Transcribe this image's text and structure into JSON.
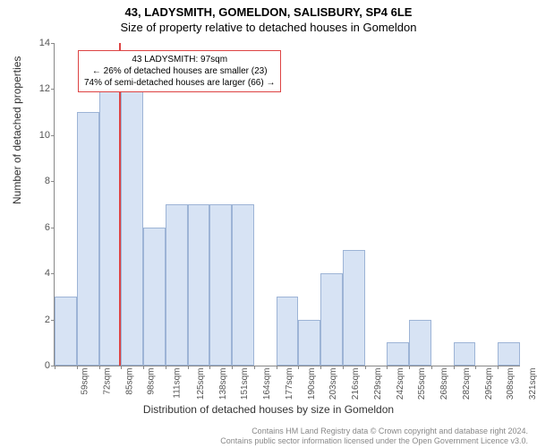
{
  "title": {
    "line1": "43, LADYSMITH, GOMELDON, SALISBURY, SP4 6LE",
    "line2": "Size of property relative to detached houses in Gomeldon"
  },
  "axes": {
    "ylabel": "Number of detached properties",
    "xlabel": "Distribution of detached houses by size in Gomeldon",
    "ymin": 0,
    "ymax": 14,
    "ytick_step": 2,
    "ytick_labels": [
      "0",
      "2",
      "4",
      "6",
      "8",
      "10",
      "12",
      "14"
    ],
    "xtick_labels": [
      "59sqm",
      "72sqm",
      "85sqm",
      "98sqm",
      "111sqm",
      "125sqm",
      "138sqm",
      "151sqm",
      "164sqm",
      "177sqm",
      "190sqm",
      "203sqm",
      "216sqm",
      "229sqm",
      "242sqm",
      "255sqm",
      "268sqm",
      "282sqm",
      "295sqm",
      "308sqm",
      "321sqm"
    ],
    "label_fontsize": 12,
    "tick_fontsize": 10
  },
  "chart": {
    "type": "histogram",
    "bar_color": "#d7e3f4",
    "bar_border_color": "#9db4d6",
    "background_color": "#ffffff",
    "axis_color": "#888888",
    "bar_count": 21,
    "values": [
      3,
      11,
      13,
      12,
      6,
      7,
      7,
      7,
      7,
      0,
      3,
      2,
      4,
      5,
      0,
      1,
      2,
      0,
      1,
      0,
      1
    ]
  },
  "marker": {
    "color": "#dd4444",
    "bin_index_line": 3,
    "box_lines": [
      "43 LADYSMITH: 97sqm",
      "← 26% of detached houses are smaller (23)",
      "74% of semi-detached houses are larger (66) →"
    ]
  },
  "footer": {
    "line1": "Contains HM Land Registry data © Crown copyright and database right 2024.",
    "line2": "Contains public sector information licensed under the Open Government Licence v3.0."
  }
}
